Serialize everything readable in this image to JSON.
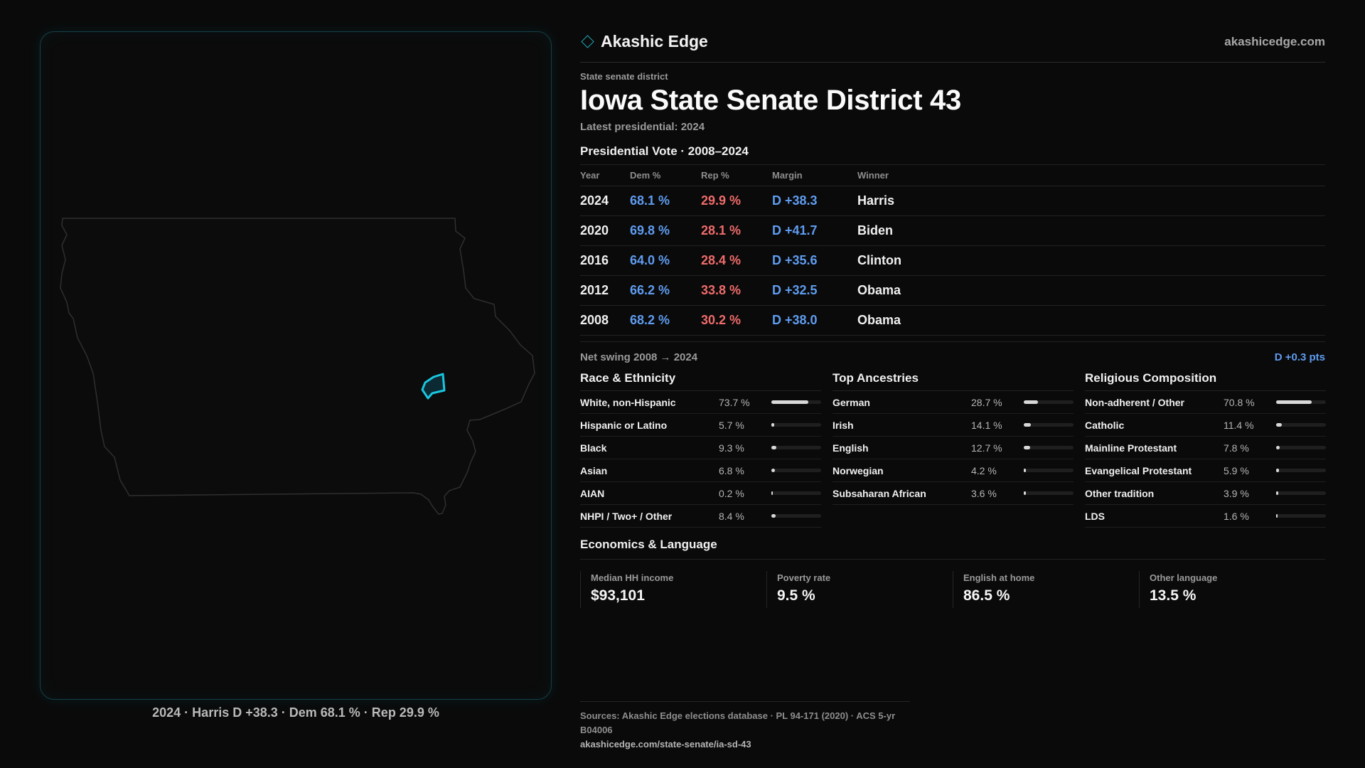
{
  "brand": {
    "name": "Akashic Edge",
    "url": "akashicedge.com",
    "accent": "#1fa3b5"
  },
  "district": {
    "kind": "State senate district",
    "title": "Iowa State Senate District 43",
    "latest": "Latest presidential: 2024"
  },
  "map": {
    "caption": "2024 · Harris D +38.3 · Dem 68.1 % · Rep 29.9 %",
    "highlight_color": "#19c6e0"
  },
  "presidential": {
    "title": "Presidential Vote · 2008–2024",
    "headers": {
      "year": "Year",
      "dem": "Dem %",
      "rep": "Rep %",
      "margin": "Margin",
      "winner": "Winner"
    },
    "rows": [
      {
        "year": "2024",
        "dem": "68.1 %",
        "rep": "29.9 %",
        "margin": "D +38.3",
        "winner": "Harris"
      },
      {
        "year": "2020",
        "dem": "69.8 %",
        "rep": "28.1 %",
        "margin": "D +41.7",
        "winner": "Biden"
      },
      {
        "year": "2016",
        "dem": "64.0 %",
        "rep": "28.4 %",
        "margin": "D +35.6",
        "winner": "Clinton"
      },
      {
        "year": "2012",
        "dem": "66.2 %",
        "rep": "33.8 %",
        "margin": "D +32.5",
        "winner": "Obama"
      },
      {
        "year": "2008",
        "dem": "68.2 %",
        "rep": "30.2 %",
        "margin": "D +38.0",
        "winner": "Obama"
      }
    ],
    "swing_label": "Net swing 2008 → 2024",
    "swing_value": "D +0.3 pts"
  },
  "race": {
    "title": "Race & Ethnicity",
    "rows": [
      {
        "label": "White, non-Hispanic",
        "value": "73.7 %",
        "pct": 73.7
      },
      {
        "label": "Hispanic or Latino",
        "value": "5.7 %",
        "pct": 5.7
      },
      {
        "label": "Black",
        "value": "9.3 %",
        "pct": 9.3
      },
      {
        "label": "Asian",
        "value": "6.8 %",
        "pct": 6.8
      },
      {
        "label": "AIAN",
        "value": "0.2 %",
        "pct": 0.2
      },
      {
        "label": "NHPI / Two+ / Other",
        "value": "8.4 %",
        "pct": 8.4
      }
    ]
  },
  "ancestry": {
    "title": "Top Ancestries",
    "rows": [
      {
        "label": "German",
        "value": "28.7 %",
        "pct": 28.7
      },
      {
        "label": "Irish",
        "value": "14.1 %",
        "pct": 14.1
      },
      {
        "label": "English",
        "value": "12.7 %",
        "pct": 12.7
      },
      {
        "label": "Norwegian",
        "value": "4.2 %",
        "pct": 4.2
      },
      {
        "label": "Subsaharan African",
        "value": "3.6 %",
        "pct": 3.6
      }
    ]
  },
  "religion": {
    "title": "Religious Composition",
    "rows": [
      {
        "label": "Non-adherent / Other",
        "value": "70.8 %",
        "pct": 70.8
      },
      {
        "label": "Catholic",
        "value": "11.4 %",
        "pct": 11.4
      },
      {
        "label": "Mainline Protestant",
        "value": "7.8 %",
        "pct": 7.8
      },
      {
        "label": "Evangelical Protestant",
        "value": "5.9 %",
        "pct": 5.9
      },
      {
        "label": "Other tradition",
        "value": "3.9 %",
        "pct": 3.9
      },
      {
        "label": "LDS",
        "value": "1.6 %",
        "pct": 1.6
      }
    ]
  },
  "economics": {
    "title": "Economics & Language",
    "cards": [
      {
        "label": "Median HH income",
        "value": "$93,101"
      },
      {
        "label": "Poverty rate",
        "value": "9.5 %"
      },
      {
        "label": "English at home",
        "value": "86.5 %"
      },
      {
        "label": "Other language",
        "value": "13.5 %"
      }
    ]
  },
  "sources": {
    "text": "Sources: Akashic Edge elections database · PL 94-171 (2020) · ACS 5-yr B04006",
    "url": "akashicedge.com/state-senate/ia-sd-43"
  }
}
